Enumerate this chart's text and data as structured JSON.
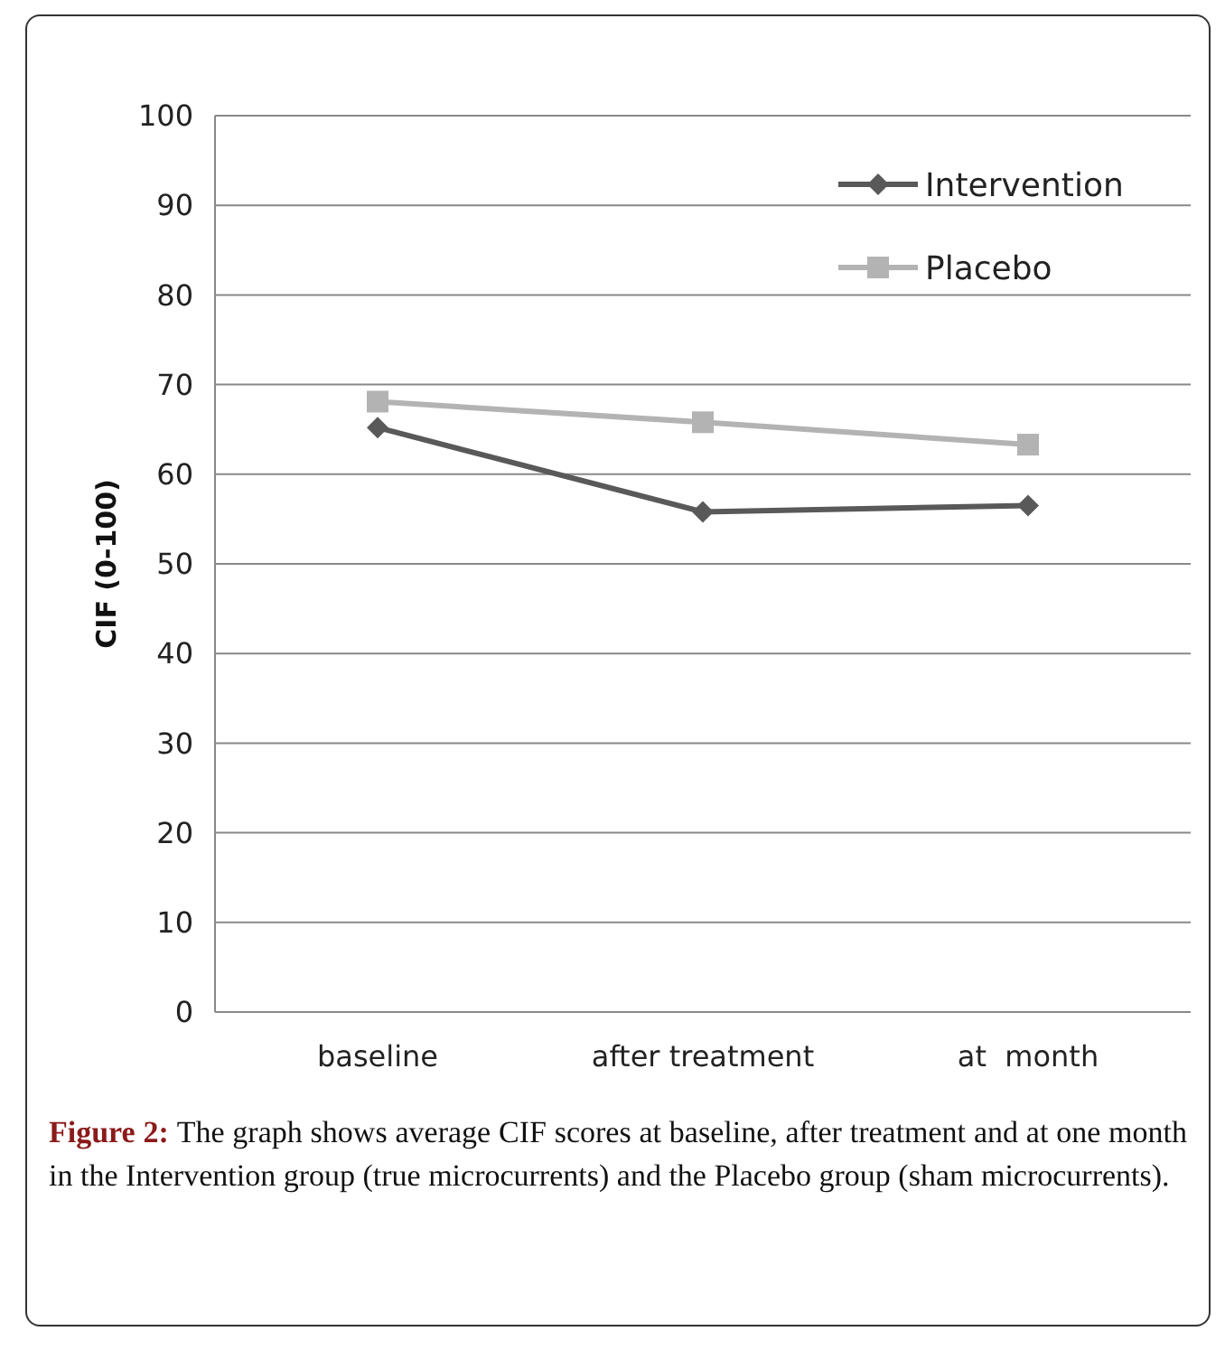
{
  "chart_data": {
    "type": "line",
    "ylabel": "CIF (0-100)",
    "categories": [
      "baseline",
      "after treatment",
      "at  month"
    ],
    "series": [
      {
        "name": "Intervention",
        "color": "#595959",
        "marker": "diamond",
        "values": [
          65.2,
          55.8,
          56.5
        ]
      },
      {
        "name": "Placebo",
        "color": "#b3b3b3",
        "marker": "square",
        "values": [
          68.1,
          65.8,
          63.3
        ]
      }
    ],
    "ylim": [
      0,
      100
    ],
    "yticks": [
      0,
      10,
      20,
      30,
      40,
      50,
      60,
      70,
      80,
      90,
      100
    ],
    "grid": "y",
    "legend": "top right",
    "line_style": "solid",
    "annotations": [
      "Figure 2:",
      "The graph shows average CIF scores at baseline, after treatment and at one month in the Intervention group (true microcurrents) and the Placebo group (sham microcurrents)."
    ]
  }
}
